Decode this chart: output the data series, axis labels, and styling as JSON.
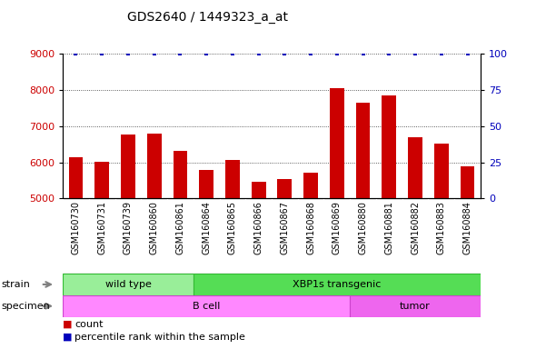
{
  "title": "GDS2640 / 1449323_a_at",
  "samples": [
    "GSM160730",
    "GSM160731",
    "GSM160739",
    "GSM160860",
    "GSM160861",
    "GSM160864",
    "GSM160865",
    "GSM160866",
    "GSM160867",
    "GSM160868",
    "GSM160869",
    "GSM160880",
    "GSM160881",
    "GSM160882",
    "GSM160883",
    "GSM160884"
  ],
  "counts": [
    6150,
    6010,
    6780,
    6790,
    6310,
    5790,
    6060,
    5460,
    5540,
    5720,
    8060,
    7660,
    7860,
    6700,
    6530,
    5900
  ],
  "percentiles": [
    100,
    100,
    100,
    100,
    100,
    100,
    100,
    100,
    100,
    100,
    100,
    100,
    100,
    100,
    100,
    100
  ],
  "bar_color": "#cc0000",
  "dot_color": "#0000bb",
  "ylim_left": [
    5000,
    9000
  ],
  "ylim_right": [
    0,
    100
  ],
  "yticks_left": [
    5000,
    6000,
    7000,
    8000,
    9000
  ],
  "yticks_right": [
    0,
    25,
    50,
    75,
    100
  ],
  "strain_groups": [
    {
      "label": "wild type",
      "start": 0,
      "end": 5,
      "facecolor": "#99ee99",
      "edgecolor": "#33bb33"
    },
    {
      "label": "XBP1s transgenic",
      "start": 5,
      "end": 16,
      "facecolor": "#55dd55",
      "edgecolor": "#33bb33"
    }
  ],
  "specimen_groups": [
    {
      "label": "B cell",
      "start": 0,
      "end": 11,
      "facecolor": "#ff88ff",
      "edgecolor": "#cc44cc"
    },
    {
      "label": "tumor",
      "start": 11,
      "end": 16,
      "facecolor": "#ee66ee",
      "edgecolor": "#cc44cc"
    }
  ],
  "label_bg_color": "#c8c8c8",
  "label_sep_color": "#888888",
  "background_color": "#ffffff",
  "title_fontsize": 10,
  "axis_fontsize": 8,
  "tick_label_fontsize": 7,
  "strain_spec_fontsize": 8,
  "legend_fontsize": 8
}
